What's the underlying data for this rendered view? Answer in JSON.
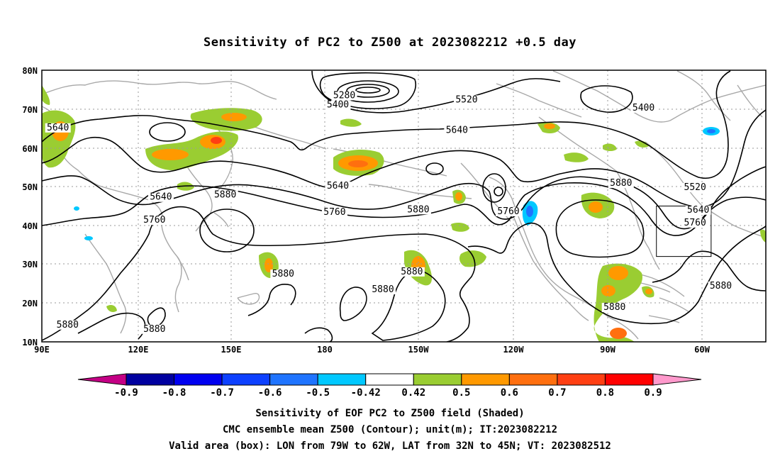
{
  "title": "Sensitivity of PC2 to Z500 at 2023082212 +0.5 day",
  "map": {
    "lat_labels": [
      "80N",
      "70N",
      "60N",
      "50N",
      "40N",
      "30N",
      "20N",
      "10N"
    ],
    "lon_labels": [
      "90E",
      "120E",
      "150E",
      "180",
      "150W",
      "120W",
      "90W",
      "60W"
    ],
    "contour_levels": [
      "5280",
      "5400",
      "5520",
      "5640",
      "5760",
      "5880"
    ],
    "contour_labels": [
      {
        "text": "5280",
        "lon": -176,
        "lat": 72.8
      },
      {
        "text": "5400",
        "lon": -178,
        "lat": 70.4
      },
      {
        "text": "5520",
        "lon": -138,
        "lat": 71.7
      },
      {
        "text": "5400",
        "lon": -83,
        "lat": 69.6
      },
      {
        "text": "5640",
        "lon": 95,
        "lat": 64.5
      },
      {
        "text": "5640",
        "lon": -141,
        "lat": 63.8
      },
      {
        "text": "5520",
        "lon": -67,
        "lat": 49.1
      },
      {
        "text": "5640",
        "lon": 127,
        "lat": 46.6
      },
      {
        "text": "5880",
        "lon": 147,
        "lat": 47.2
      },
      {
        "text": "5640",
        "lon": -178,
        "lat": 49.5
      },
      {
        "text": "5880",
        "lon": -90,
        "lat": 50.2
      },
      {
        "text": "5640",
        "lon": -66,
        "lat": 43.3
      },
      {
        "text": "5760",
        "lon": 125,
        "lat": 40.7
      },
      {
        "text": "5760",
        "lon": -179,
        "lat": 42.7
      },
      {
        "text": "5880",
        "lon": -153,
        "lat": 43.4
      },
      {
        "text": "5760",
        "lon": -125,
        "lat": 42.9
      },
      {
        "text": "5760",
        "lon": -67,
        "lat": 40.0
      },
      {
        "text": "5880",
        "lon": 165,
        "lat": 26.8
      },
      {
        "text": "5880",
        "lon": -155,
        "lat": 27.4
      },
      {
        "text": "5880",
        "lon": -164,
        "lat": 22.8
      },
      {
        "text": "5880",
        "lon": -59,
        "lat": 23.7
      },
      {
        "text": "5880",
        "lon": -92,
        "lat": 18.2
      },
      {
        "text": "5880",
        "lon": 98,
        "lat": 13.7
      },
      {
        "text": "5880",
        "lon": 125,
        "lat": 12.6
      }
    ],
    "valid_box": {
      "lon_min": -79,
      "lon_max": -62,
      "lat_min": 32,
      "lat_max": 45
    }
  },
  "colorbar": {
    "ticks": [
      "-0.9",
      "-0.8",
      "-0.7",
      "-0.6",
      "-0.5",
      "-0.42",
      "0.42",
      "0.5",
      "0.6",
      "0.7",
      "0.8",
      "0.9"
    ],
    "colors": [
      "#0000a0",
      "#0000f0",
      "#0d40ff",
      "#1f74ff",
      "#00c8ff",
      "#ffffff",
      "#9acd32",
      "#ff9900",
      "#ff6f0f",
      "#ff3f13",
      "#ff0000"
    ],
    "low_color": "#c40085",
    "high_color": "#ff99cc"
  },
  "caption": {
    "line1": "Sensitivity of EOF PC2 to Z500 field (Shaded)",
    "line2": "CMC ensemble mean Z500 (Contour); unit(m); IT:2023082212",
    "line3": "Valid area (box): LON from 79W to 62W, LAT from 32N to 45N; VT: 2023082512"
  }
}
